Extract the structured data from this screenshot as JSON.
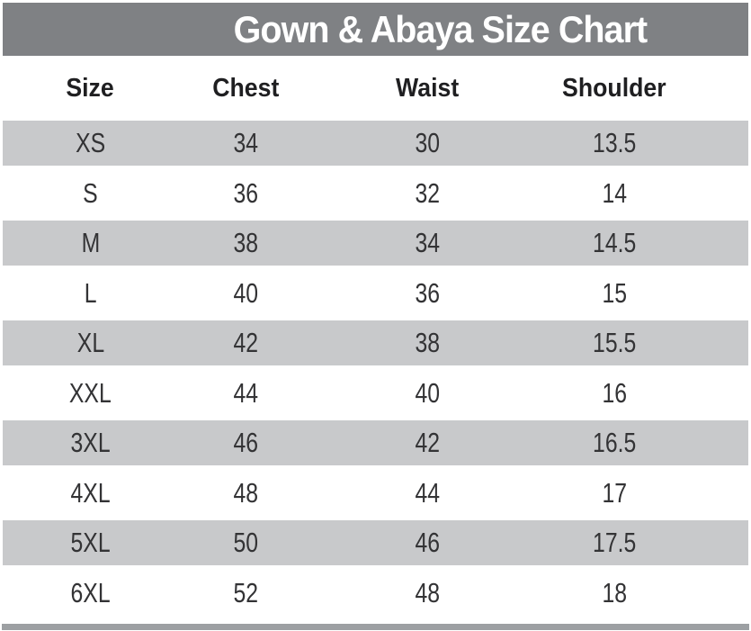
{
  "chart_data": {
    "type": "table",
    "title": "Gown & Abaya Size Chart",
    "columns": [
      "Size",
      "Chest",
      "Waist",
      "Shoulder"
    ],
    "rows": [
      [
        "XS",
        "34",
        "30",
        "13.5"
      ],
      [
        "S",
        "36",
        "32",
        "14"
      ],
      [
        "M",
        "38",
        "34",
        "14.5"
      ],
      [
        "L",
        "40",
        "36",
        "15"
      ],
      [
        "XL",
        "42",
        "38",
        "15.5"
      ],
      [
        "XXL",
        "44",
        "40",
        "16"
      ],
      [
        "3XL",
        "46",
        "42",
        "16.5"
      ],
      [
        "4XL",
        "48",
        "44",
        "17"
      ],
      [
        "5XL",
        "50",
        "46",
        "17.5"
      ],
      [
        "6XL",
        "52",
        "48",
        "18"
      ]
    ]
  },
  "colors": {
    "title_bar_bg": "#7f8184",
    "stripe_bg": "#c8c9cb",
    "footer_bar_bg": "#9da0a3",
    "title_text": "#ffffff",
    "header_text": "#1f1f21",
    "cell_text": "#333335"
  }
}
